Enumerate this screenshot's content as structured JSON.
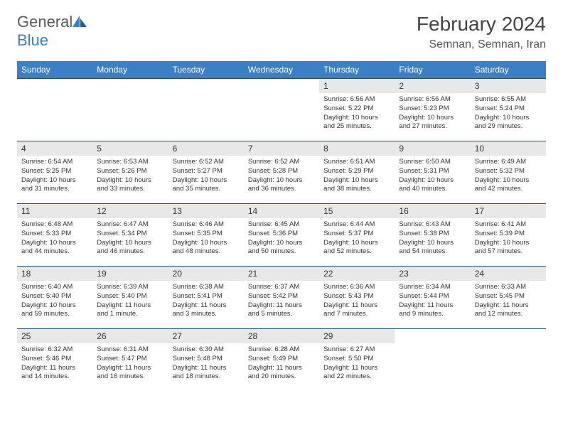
{
  "brand": {
    "part1": "General",
    "part2": "Blue"
  },
  "title": "February 2024",
  "location": "Semnan, Semnan, Iran",
  "colors": {
    "header_bg": "#3b7fc4",
    "header_text": "#ffffff",
    "daynum_bg": "#e8e8e8",
    "border": "#2b4a6b",
    "logo_blue": "#3b7fc4",
    "logo_gray": "#5a5a5a"
  },
  "weekdays": [
    "Sunday",
    "Monday",
    "Tuesday",
    "Wednesday",
    "Thursday",
    "Friday",
    "Saturday"
  ],
  "weeks": [
    [
      null,
      null,
      null,
      null,
      {
        "n": "1",
        "sr": "6:56 AM",
        "ss": "5:22 PM",
        "dl": "10 hours and 25 minutes."
      },
      {
        "n": "2",
        "sr": "6:56 AM",
        "ss": "5:23 PM",
        "dl": "10 hours and 27 minutes."
      },
      {
        "n": "3",
        "sr": "6:55 AM",
        "ss": "5:24 PM",
        "dl": "10 hours and 29 minutes."
      }
    ],
    [
      {
        "n": "4",
        "sr": "6:54 AM",
        "ss": "5:25 PM",
        "dl": "10 hours and 31 minutes."
      },
      {
        "n": "5",
        "sr": "6:53 AM",
        "ss": "5:26 PM",
        "dl": "10 hours and 33 minutes."
      },
      {
        "n": "6",
        "sr": "6:52 AM",
        "ss": "5:27 PM",
        "dl": "10 hours and 35 minutes."
      },
      {
        "n": "7",
        "sr": "6:52 AM",
        "ss": "5:28 PM",
        "dl": "10 hours and 36 minutes."
      },
      {
        "n": "8",
        "sr": "6:51 AM",
        "ss": "5:29 PM",
        "dl": "10 hours and 38 minutes."
      },
      {
        "n": "9",
        "sr": "6:50 AM",
        "ss": "5:31 PM",
        "dl": "10 hours and 40 minutes."
      },
      {
        "n": "10",
        "sr": "6:49 AM",
        "ss": "5:32 PM",
        "dl": "10 hours and 42 minutes."
      }
    ],
    [
      {
        "n": "11",
        "sr": "6:48 AM",
        "ss": "5:33 PM",
        "dl": "10 hours and 44 minutes."
      },
      {
        "n": "12",
        "sr": "6:47 AM",
        "ss": "5:34 PM",
        "dl": "10 hours and 46 minutes."
      },
      {
        "n": "13",
        "sr": "6:46 AM",
        "ss": "5:35 PM",
        "dl": "10 hours and 48 minutes."
      },
      {
        "n": "14",
        "sr": "6:45 AM",
        "ss": "5:36 PM",
        "dl": "10 hours and 50 minutes."
      },
      {
        "n": "15",
        "sr": "6:44 AM",
        "ss": "5:37 PM",
        "dl": "10 hours and 52 minutes."
      },
      {
        "n": "16",
        "sr": "6:43 AM",
        "ss": "5:38 PM",
        "dl": "10 hours and 54 minutes."
      },
      {
        "n": "17",
        "sr": "6:41 AM",
        "ss": "5:39 PM",
        "dl": "10 hours and 57 minutes."
      }
    ],
    [
      {
        "n": "18",
        "sr": "6:40 AM",
        "ss": "5:40 PM",
        "dl": "10 hours and 59 minutes."
      },
      {
        "n": "19",
        "sr": "6:39 AM",
        "ss": "5:40 PM",
        "dl": "11 hours and 1 minute."
      },
      {
        "n": "20",
        "sr": "6:38 AM",
        "ss": "5:41 PM",
        "dl": "11 hours and 3 minutes."
      },
      {
        "n": "21",
        "sr": "6:37 AM",
        "ss": "5:42 PM",
        "dl": "11 hours and 5 minutes."
      },
      {
        "n": "22",
        "sr": "6:36 AM",
        "ss": "5:43 PM",
        "dl": "11 hours and 7 minutes."
      },
      {
        "n": "23",
        "sr": "6:34 AM",
        "ss": "5:44 PM",
        "dl": "11 hours and 9 minutes."
      },
      {
        "n": "24",
        "sr": "6:33 AM",
        "ss": "5:45 PM",
        "dl": "11 hours and 12 minutes."
      }
    ],
    [
      {
        "n": "25",
        "sr": "6:32 AM",
        "ss": "5:46 PM",
        "dl": "11 hours and 14 minutes."
      },
      {
        "n": "26",
        "sr": "6:31 AM",
        "ss": "5:47 PM",
        "dl": "11 hours and 16 minutes."
      },
      {
        "n": "27",
        "sr": "6:30 AM",
        "ss": "5:48 PM",
        "dl": "11 hours and 18 minutes."
      },
      {
        "n": "28",
        "sr": "6:28 AM",
        "ss": "5:49 PM",
        "dl": "11 hours and 20 minutes."
      },
      {
        "n": "29",
        "sr": "6:27 AM",
        "ss": "5:50 PM",
        "dl": "11 hours and 22 minutes."
      },
      null,
      null
    ]
  ],
  "labels": {
    "sunrise": "Sunrise:",
    "sunset": "Sunset:",
    "daylight": "Daylight:"
  }
}
